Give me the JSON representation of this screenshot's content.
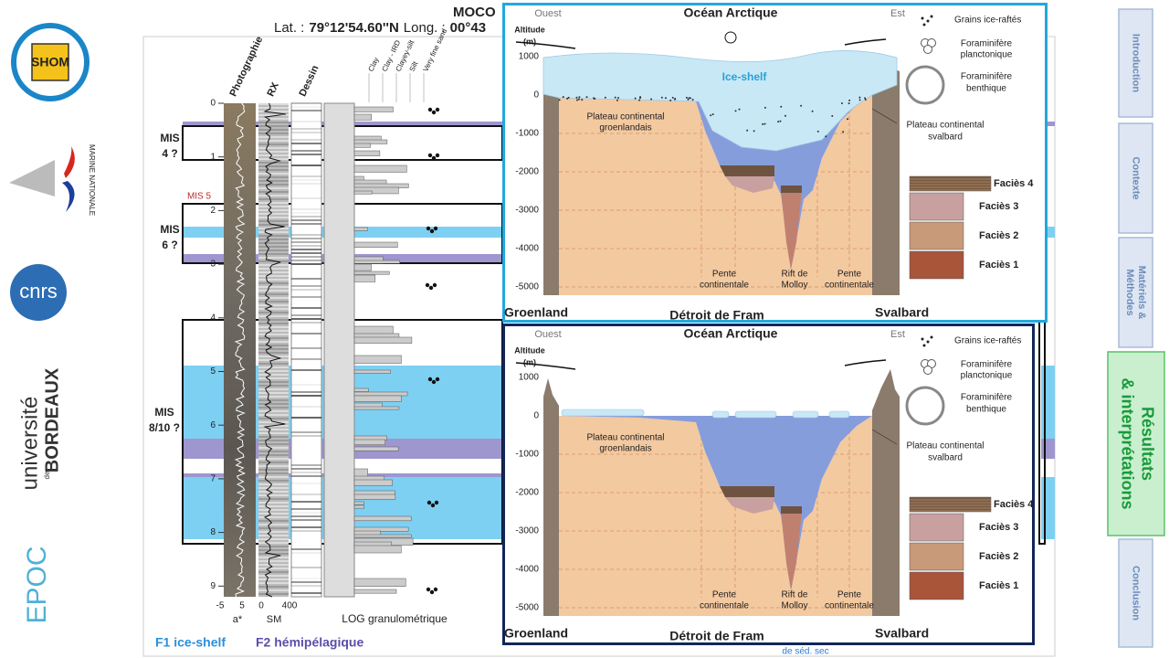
{
  "logos": {
    "shom": "SHOM",
    "marine": "MARINE NATIONALE",
    "cnrs": "cnrs",
    "bordeaux": [
      "université",
      "de",
      "BORDEAUX"
    ],
    "epoc": "EPOC"
  },
  "header": {
    "title": "MOCO",
    "lat_label": "Lat. :",
    "lat": "79°12'54.60''N",
    "long_label": "Long. :",
    "long": "00°43"
  },
  "core": {
    "columns": [
      "Photographie",
      "RX",
      "Dessin"
    ],
    "grain_sizes": [
      "Clay",
      "Clay - IRD",
      "Clayey-silt",
      "Silt",
      "Very fine sand"
    ],
    "depths": [
      0,
      1,
      2,
      3,
      4,
      5,
      6,
      7,
      8,
      9
    ],
    "mis": {
      "mis4": [
        "MIS",
        "4 ?"
      ],
      "mis5": "MIS 5",
      "mis6": [
        "MIS",
        "6 ?"
      ],
      "mis810": [
        "MIS",
        "8/10 ?"
      ]
    },
    "axis_labels": {
      "a_min": "-5",
      "a_max": "5",
      "sm_min": "0",
      "sm_max": "400",
      "a": "a*",
      "sm": "SM",
      "log": "LOG granulométrique"
    },
    "legend": {
      "f1": "F1 ice-shelf",
      "f2": "F2 hémipélagique"
    },
    "footer": "de séd. sec"
  },
  "panels": [
    {
      "title": "Océan Arctique",
      "west": "Ouest",
      "east": "Est",
      "altitude": [
        "Altitude",
        "(m)"
      ],
      "yticks": [
        1000,
        0,
        -1000,
        -2000,
        -3000,
        -4000,
        -5000
      ],
      "ice_shelf": "Ice-shelf",
      "plateau_groenland": [
        "Plateau continental",
        "groenlandais"
      ],
      "plateau_svalbard": [
        "Plateau continental",
        "svalbard"
      ],
      "pente_left": [
        "Pente",
        "continentale"
      ],
      "rift": [
        "Rift de",
        "Molloy"
      ],
      "pente_right": [
        "Pente",
        "continentale"
      ],
      "groenland": "Groenland",
      "fram": "Détroit de Fram",
      "svalbard": "Svalbard",
      "legend": {
        "grains": "Grains ice-raftés",
        "planctonique": [
          "Foraminifère",
          "planctonique"
        ],
        "benthique": [
          "Foraminifère",
          "benthique"
        ]
      },
      "facies": [
        "Faciès 4",
        "Faciès 3",
        "Faciès 2",
        "Faciès 1"
      ]
    },
    {
      "title": "Océan Arctique",
      "west": "Ouest",
      "east": "Est",
      "altitude": [
        "Altitude",
        "(m)"
      ],
      "yticks": [
        1000,
        0,
        -1000,
        -2000,
        -3000,
        -4000,
        -5000
      ],
      "plateau_groenland": [
        "Plateau continental",
        "groenlandais"
      ],
      "plateau_svalbard": [
        "Plateau continental",
        "svalbard"
      ],
      "pente_left": [
        "Pente",
        "continentale"
      ],
      "rift": [
        "Rift de",
        "Molloy"
      ],
      "pente_right": [
        "Pente",
        "continentale"
      ],
      "groenland": "Groenland",
      "fram": "Détroit de Fram",
      "svalbard": "Svalbard",
      "legend": {
        "grains": "Grains ice-raftés",
        "planctonique": [
          "Foraminifère",
          "planctonique"
        ],
        "benthique": [
          "Foraminifère",
          "benthique"
        ]
      },
      "facies": [
        "Faciès 4",
        "Faciès 3",
        "Faciès 2",
        "Faciès 1"
      ]
    }
  ],
  "nav": [
    [
      "Introduction"
    ],
    [
      "Contexte"
    ],
    [
      "Matériels &",
      "Méthodes"
    ],
    [
      "Résultats",
      "& interprétations"
    ],
    [
      "Conclusion"
    ]
  ]
}
